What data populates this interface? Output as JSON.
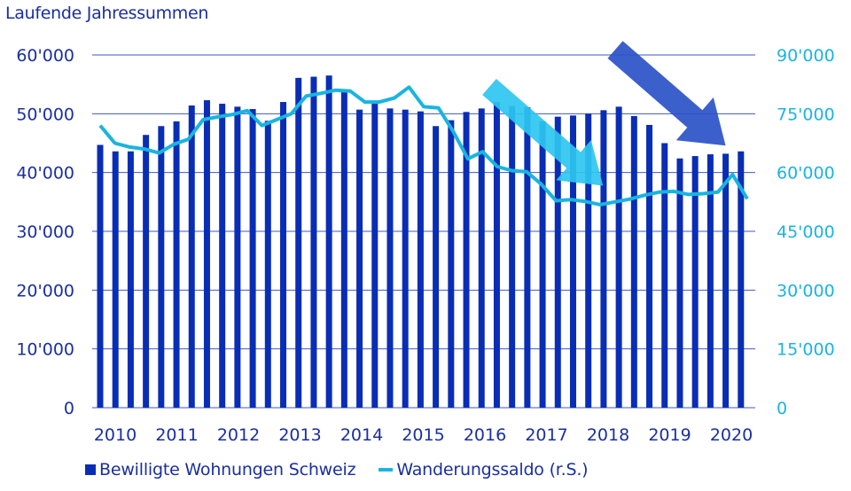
{
  "title": "Laufende Jahressummen",
  "legend": {
    "bars_label": "Bewilligte Wohnungen Schweiz",
    "line_label": "Wanderungssaldo (r.S.)"
  },
  "colors": {
    "bars": "#0a2db5",
    "line": "#1ab4e0",
    "left_axis_text": "#1a2fa0",
    "right_axis_text": "#1ab4e0",
    "grid": "#3f57c4",
    "arrow_light": "#2ec5f0",
    "arrow_dark": "#2a52c8"
  },
  "chart_data": {
    "type": "bar",
    "title": "Laufende Jahressummen",
    "xlabel": "",
    "ylabel": "",
    "y_left": {
      "min": 0,
      "max": 60000,
      "ticks": [
        "0",
        "10'000",
        "20'000",
        "30'000",
        "40'000",
        "50'000",
        "60'000"
      ]
    },
    "y_right": {
      "min": 0,
      "max": 90000,
      "ticks": [
        "0",
        "15'000",
        "30'000",
        "45'000",
        "60'000",
        "75'000",
        "90'000"
      ]
    },
    "x_tick_labels": [
      "2010",
      "2011",
      "2012",
      "2013",
      "2014",
      "2015",
      "2016",
      "2017",
      "2018",
      "2019",
      "2020"
    ],
    "grid": true,
    "legend_position": "bottom",
    "series": [
      {
        "name": "Bewilligte Wohnungen Schweiz",
        "type": "bar",
        "axis": "left",
        "values": [
          44700,
          43600,
          43600,
          46400,
          47900,
          48700,
          51400,
          52300,
          51700,
          51200,
          50800,
          48800,
          52000,
          56100,
          56300,
          56500,
          53700,
          50700,
          51700,
          50900,
          50700,
          50400,
          47900,
          48900,
          50300,
          50900,
          52000,
          51300,
          51100,
          48700,
          49500,
          49700,
          50000,
          50600,
          51200,
          49600,
          48100,
          45000,
          42400,
          42800,
          43100,
          43200,
          43600
        ]
      },
      {
        "name": "Wanderungssaldo (r.S.)",
        "type": "line",
        "axis": "right",
        "values": [
          72000,
          67500,
          66500,
          66000,
          65000,
          67200,
          68500,
          73500,
          74200,
          74800,
          75800,
          72000,
          73500,
          75000,
          79500,
          80200,
          81000,
          80800,
          78000,
          78000,
          79000,
          81800,
          76800,
          76500,
          70500,
          63500,
          65300,
          61500,
          60500,
          60200,
          57000,
          52800,
          53100,
          52600,
          51800,
          52500,
          53200,
          54200,
          55000,
          55200,
          54400,
          54600,
          55000,
          59500,
          53300
        ]
      }
    ],
    "annotations": [
      {
        "type": "arrow",
        "direction": "down-right",
        "color": "light-blue",
        "near": "2016-2018"
      },
      {
        "type": "arrow",
        "direction": "down-right",
        "color": "dark-blue",
        "near": "2019-2020"
      }
    ]
  }
}
